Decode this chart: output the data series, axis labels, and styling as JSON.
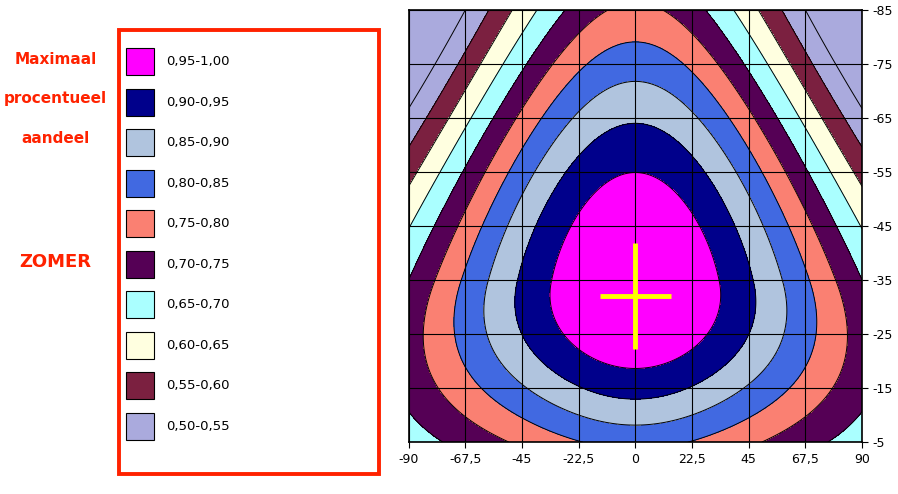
{
  "title_lines": [
    "Maximaal",
    "procentueel",
    "aandeel"
  ],
  "season_label": "ZOMER",
  "legend_labels": [
    "0,95-1,00",
    "0,90-0,95",
    "0,85-0,90",
    "0,80-0,85",
    "0,75-0,80",
    "0,70-0,75",
    "0,65-0,70",
    "0,60-0,65",
    "0,55-0,60",
    "0,50-0,55"
  ],
  "legend_colors": [
    "#FF00FF",
    "#00008B",
    "#B0C4DE",
    "#4169E1",
    "#FA8072",
    "#550055",
    "#AAFFFF",
    "#FFFFE0",
    "#7B2040",
    "#AAAADD"
  ],
  "contour_colors_low_to_high": [
    "#AAAADD",
    "#7B2040",
    "#FFFFE0",
    "#AAFFFF",
    "#550055",
    "#FA8072",
    "#4169E1",
    "#B0C4DE",
    "#00008B",
    "#FF00FF"
  ],
  "levels": [
    0.5,
    0.55,
    0.6,
    0.65,
    0.7,
    0.75,
    0.8,
    0.85,
    0.9,
    0.95,
    1.0
  ],
  "xmin": -90,
  "xmax": 90,
  "ymin": 5,
  "ymax": 85,
  "xticks": [
    -90,
    -67.5,
    -45,
    -22.5,
    0,
    22.5,
    45,
    67.5,
    90
  ],
  "yticks": [
    5,
    15,
    25,
    35,
    45,
    55,
    65,
    75,
    85
  ],
  "xtick_labels": [
    "-90",
    "-67,5",
    "-45",
    "-22,5",
    "0",
    "22,5",
    "45",
    "67,5",
    "90"
  ],
  "ytick_labels": [
    "-5",
    "-15",
    "-25",
    "-35",
    "-45",
    "-55",
    "-65",
    "-75",
    "-85"
  ],
  "marker_x": 0,
  "marker_y": 32,
  "marker_color": "#FFFF00",
  "marker_size": 14,
  "text_color": "#FF2200",
  "border_color": "#FF2200"
}
